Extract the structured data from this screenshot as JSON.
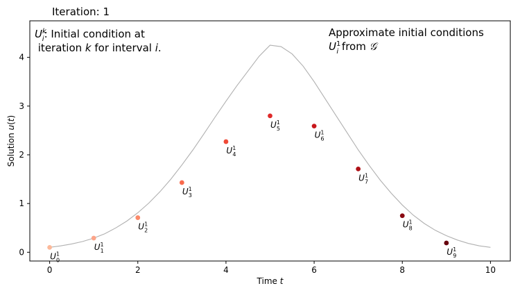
{
  "iteration_label": "Iteration:  1",
  "chart_data": {
    "type": "scatter",
    "title": "",
    "xlabel": "Time t",
    "ylabel": "Solution u(t)",
    "xlim": [
      -0.45,
      10.45
    ],
    "ylim": [
      -0.18,
      4.75
    ],
    "xticks": [
      0,
      2,
      4,
      6,
      8,
      10
    ],
    "yticks": [
      0,
      1,
      2,
      3,
      4
    ],
    "grid": false,
    "curve": {
      "color": "#b0b0b0",
      "x": [
        0.0,
        0.25,
        0.5,
        0.75,
        1.0,
        1.25,
        1.5,
        1.75,
        2.0,
        2.25,
        2.5,
        2.75,
        3.0,
        3.25,
        3.5,
        3.75,
        4.0,
        4.25,
        4.5,
        4.75,
        5.0,
        5.25,
        5.5,
        5.75,
        6.0,
        6.25,
        6.5,
        6.75,
        7.0,
        7.25,
        7.5,
        7.75,
        8.0,
        8.25,
        8.5,
        8.75,
        9.0,
        9.25,
        9.5,
        9.75,
        10.0
      ],
      "y": [
        0.1,
        0.13,
        0.17,
        0.22,
        0.29,
        0.38,
        0.5,
        0.64,
        0.81,
        1.01,
        1.24,
        1.5,
        1.79,
        2.1,
        2.43,
        2.77,
        3.1,
        3.42,
        3.72,
        4.02,
        4.25,
        4.22,
        4.07,
        3.82,
        3.5,
        3.15,
        2.8,
        2.45,
        2.1,
        1.78,
        1.48,
        1.21,
        0.97,
        0.76,
        0.59,
        0.45,
        0.34,
        0.25,
        0.18,
        0.13,
        0.1
      ]
    },
    "points": [
      {
        "x": 0,
        "y": 0.1,
        "color": "#fcb99a",
        "sub": "0",
        "sup": "1"
      },
      {
        "x": 1,
        "y": 0.29,
        "color": "#fca488",
        "sub": "1",
        "sup": "1"
      },
      {
        "x": 2,
        "y": 0.71,
        "color": "#fb8a6a",
        "sub": "2",
        "sup": "1"
      },
      {
        "x": 3,
        "y": 1.43,
        "color": "#f96b4e",
        "sub": "3",
        "sup": "1"
      },
      {
        "x": 4,
        "y": 2.27,
        "color": "#f04a37",
        "sub": "4",
        "sup": "1"
      },
      {
        "x": 5,
        "y": 2.8,
        "color": "#df2a2a",
        "sub": "5",
        "sup": "1"
      },
      {
        "x": 6,
        "y": 2.59,
        "color": "#c8171c",
        "sub": "6",
        "sup": "1"
      },
      {
        "x": 7,
        "y": 1.71,
        "color": "#af1117",
        "sub": "7",
        "sup": "1"
      },
      {
        "x": 8,
        "y": 0.75,
        "color": "#8a0a12",
        "sub": "8",
        "sup": "1"
      },
      {
        "x": 9,
        "y": 0.19,
        "color": "#67000d",
        "sub": "9",
        "sup": "1"
      }
    ],
    "annotations": {
      "left_line1_rest": ": Initial condition at",
      "left_line2_a": " iteration ",
      "left_line2_k": "k",
      "left_line2_b": " for interval ",
      "left_line2_i": "i",
      "left_line2_c": ".",
      "right_line1": "Approximate initial conditions",
      "right_line2_from": " from ",
      "right_line2_G": "𝒢"
    }
  }
}
